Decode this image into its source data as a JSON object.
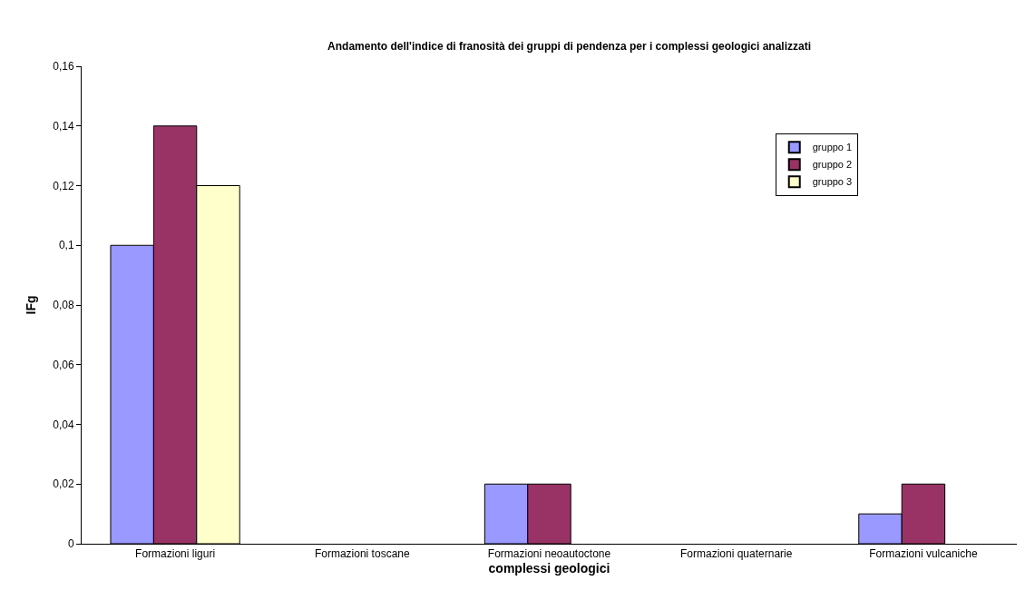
{
  "chart_data": {
    "type": "bar",
    "title": "Andamento dell'indice di franosità dei gruppi di pendenza per i complessi geologici analizzati",
    "xlabel": "complessi geologici",
    "ylabel": "IFg",
    "categories": [
      "Formazioni liguri",
      "Formazioni toscane",
      "Formazioni neoautoctone",
      "Formazioni quaternarie",
      "Formazioni vulcaniche"
    ],
    "series": [
      {
        "name": "gruppo 1",
        "color": "#9999ff",
        "values": [
          0.1,
          0,
          0.02,
          0,
          0.01
        ]
      },
      {
        "name": "gruppo 2",
        "color": "#993366",
        "values": [
          0.14,
          0,
          0.02,
          0,
          0.02
        ]
      },
      {
        "name": "gruppo 3",
        "color": "#ffffcc",
        "values": [
          0.12,
          0,
          0,
          0,
          0
        ]
      }
    ],
    "ylim": [
      0,
      0.16
    ],
    "yticks": [
      0,
      {
        "value": 0.02,
        "label": "0,02"
      },
      {
        "value": 0.04,
        "label": "0,04"
      },
      {
        "value": 0.06,
        "label": "0,06"
      },
      {
        "value": 0.08,
        "label": "0,08"
      },
      {
        "value": 0.1,
        "label": "0,1"
      },
      {
        "value": 0.12,
        "label": "0,12"
      },
      {
        "value": 0.14,
        "label": "0,14"
      },
      {
        "value": 0.16,
        "label": "0,16"
      }
    ],
    "legend": "top right"
  }
}
